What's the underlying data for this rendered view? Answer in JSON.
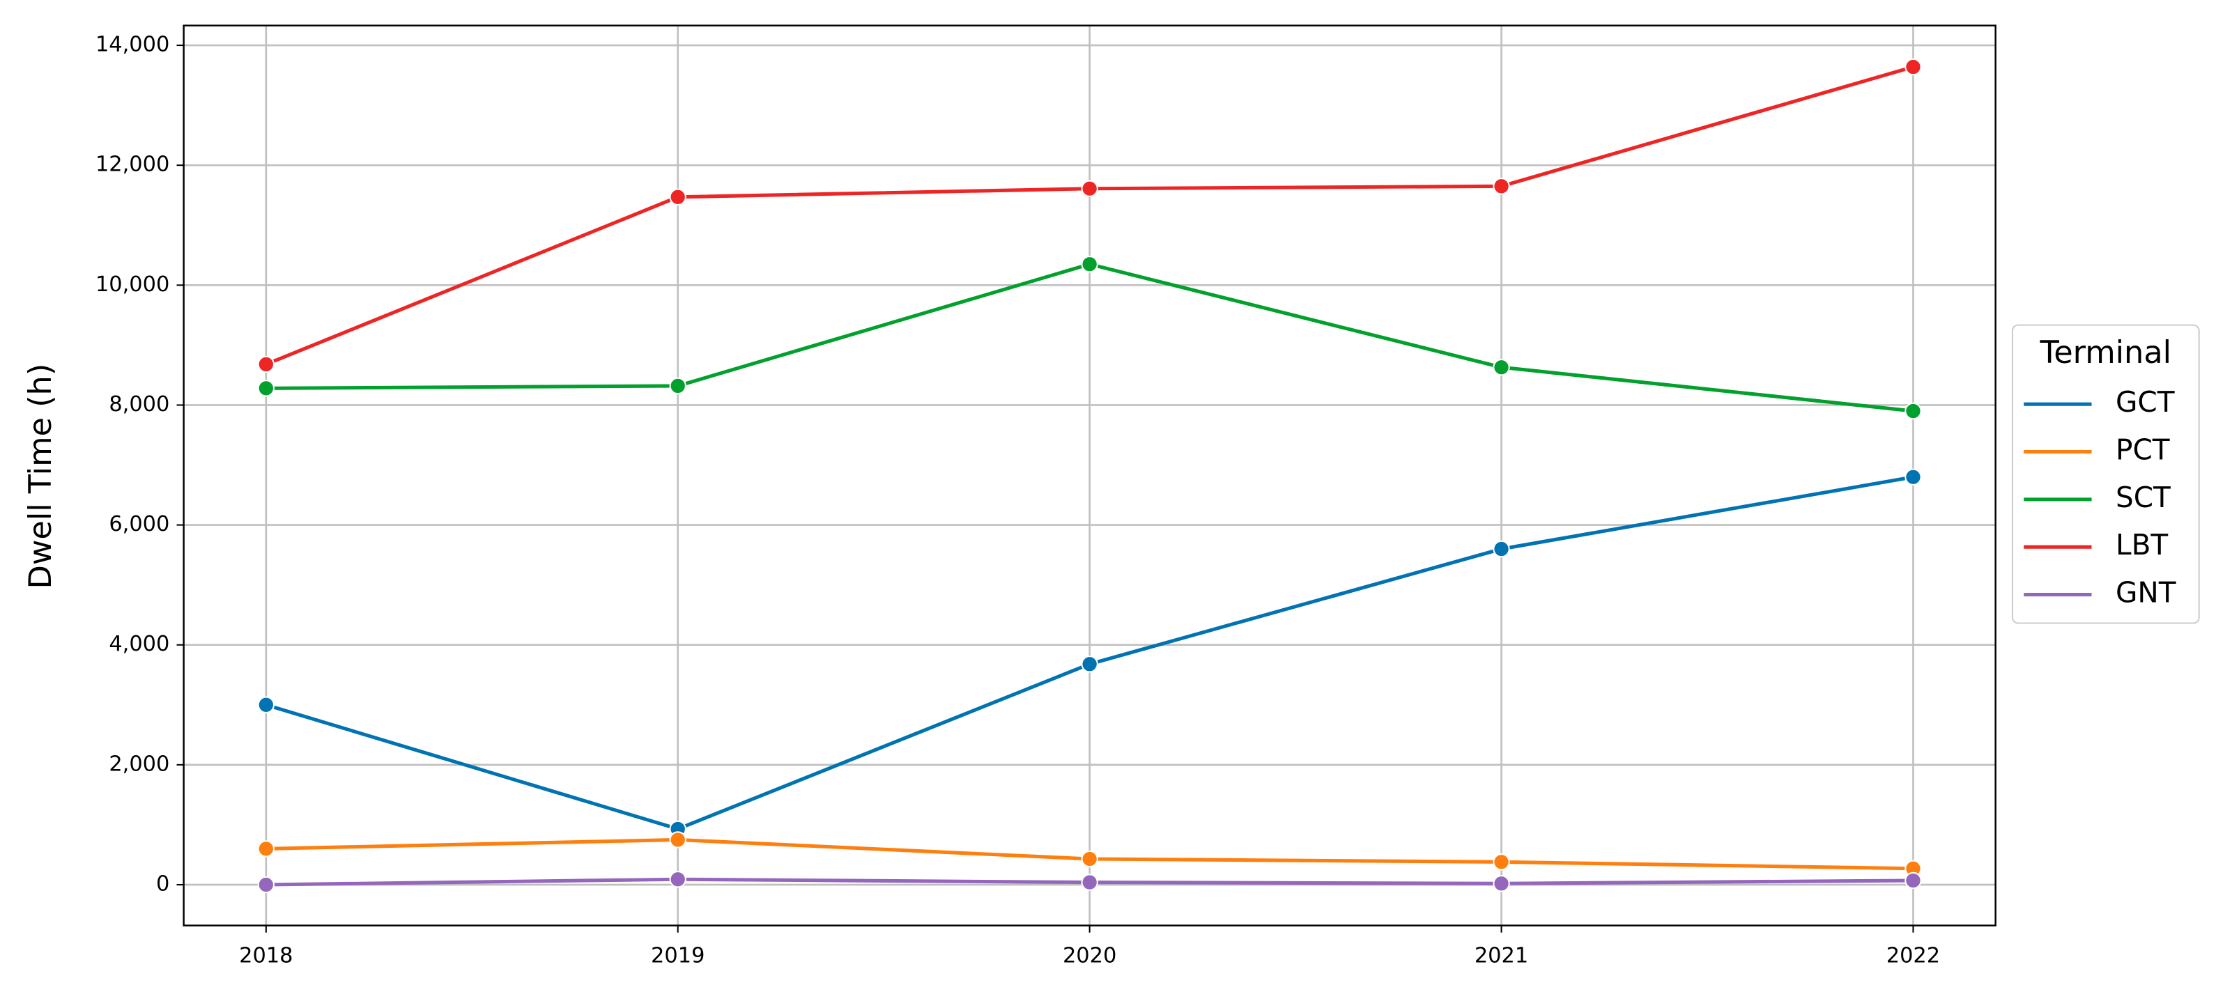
{
  "chart_data": {
    "type": "line",
    "y_label": "Dwell Time (h)",
    "x": [
      2018,
      2019,
      2020,
      2021,
      2022
    ],
    "xlim": [
      2017.8,
      2022.2
    ],
    "xticks": [
      2018,
      2019,
      2020,
      2021,
      2022
    ],
    "ylim": [
      -680,
      14330
    ],
    "yticks": [
      0,
      {
        "value": 2000,
        "label": "2,000"
      },
      {
        "value": 4000,
        "label": "4,000"
      },
      {
        "value": 6000,
        "label": "6,000"
      },
      {
        "value": 8000,
        "label": "8,000"
      },
      {
        "value": 10000,
        "label": "10,000"
      },
      {
        "value": 12000,
        "label": "12,000"
      },
      {
        "value": 14000,
        "label": "14,000"
      }
    ],
    "grid": true,
    "legend_title": "Terminal",
    "legend_position": "right",
    "series": [
      {
        "name": "GCT",
        "color": "#0173b2",
        "values": [
          3000,
          930,
          3680,
          5600,
          6800
        ]
      },
      {
        "name": "PCT",
        "color": "#ff7f0e",
        "values": [
          600,
          750,
          430,
          380,
          270
        ]
      },
      {
        "name": "SCT",
        "color": "#02a02c",
        "values": [
          8280,
          8320,
          10350,
          8630,
          7900
        ]
      },
      {
        "name": "LBT",
        "color": "#ee2525",
        "values": [
          8680,
          11470,
          11610,
          11650,
          13640
        ]
      },
      {
        "name": "GNT",
        "color": "#9467bd",
        "values": [
          0,
          90,
          40,
          20,
          70
        ]
      }
    ]
  }
}
